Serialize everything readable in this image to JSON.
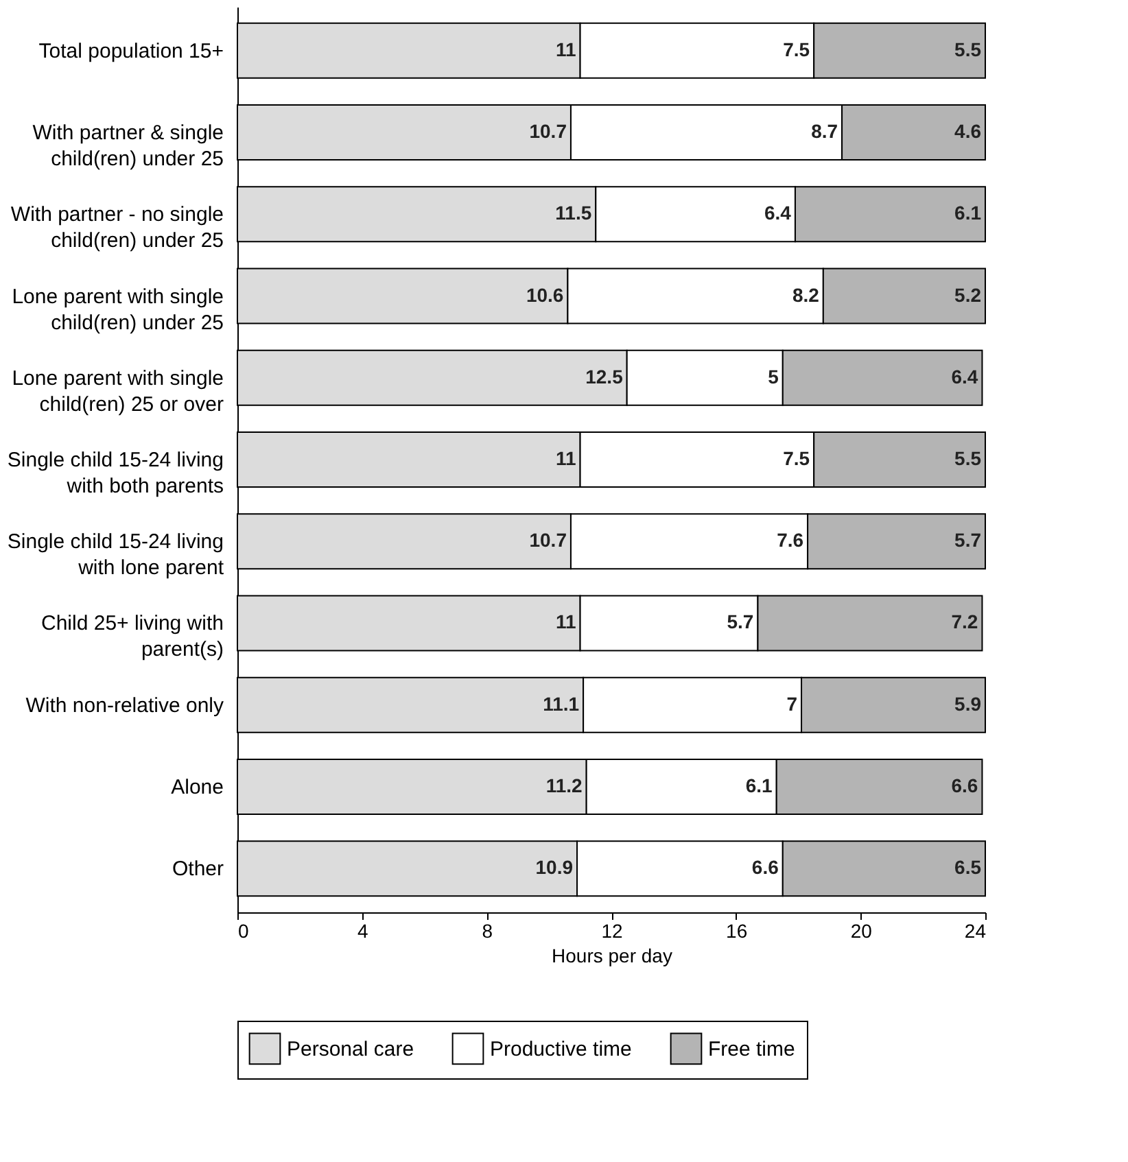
{
  "chart_data": {
    "type": "bar",
    "orientation": "horizontal",
    "stacked": true,
    "xlabel": "Hours per day",
    "categories": [
      "Total population 15+",
      "With partner & single child(ren) under 25",
      "With partner - no single child(ren) under 25",
      "Lone parent with single child(ren) under 25",
      "Lone parent with single child(ren) 25 or over",
      "Single child 15-24 living with both parents",
      "Single child 15-24 living with lone parent",
      "Child 25+ living with parent(s)",
      "With non-relative only",
      "Alone",
      "Other"
    ],
    "series": [
      {
        "name": "Personal care",
        "color": "#dcdcdc",
        "values": [
          11,
          10.7,
          11.5,
          10.6,
          12.5,
          11,
          10.7,
          11,
          11.1,
          11.2,
          10.9
        ]
      },
      {
        "name": "Productive time",
        "color": "#ffffff",
        "values": [
          7.5,
          8.7,
          6.4,
          8.2,
          5,
          7.5,
          7.6,
          5.7,
          7,
          6.1,
          6.6
        ]
      },
      {
        "name": "Free time",
        "color": "#b4b4b4",
        "values": [
          5.5,
          4.6,
          6.1,
          5.2,
          6.4,
          5.5,
          5.7,
          7.2,
          5.9,
          6.6,
          6.5
        ]
      }
    ],
    "xlim": [
      0,
      24
    ],
    "xticks": [
      0,
      4,
      8,
      12,
      16,
      20,
      24
    ],
    "data_labels": true,
    "legend": "bottom",
    "grid": false
  }
}
